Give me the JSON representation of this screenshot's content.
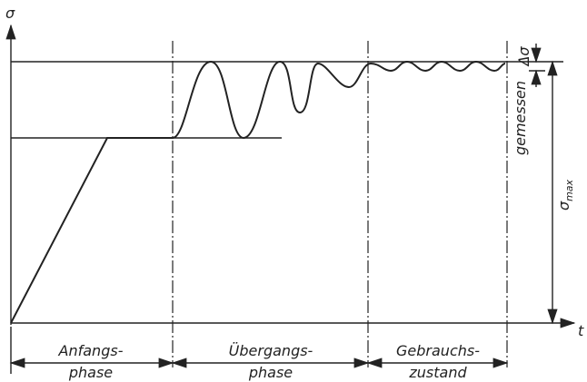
{
  "axes": {
    "y_label": "σ",
    "x_label": "t"
  },
  "annotations": {
    "delta_sigma": "Δσ",
    "gemessen": "gemessen",
    "sigma_max": {
      "symbol": "σ",
      "subscript": "max"
    }
  },
  "phases": [
    {
      "line1": "Anfangs-",
      "line2": "phase"
    },
    {
      "line1": "Übergangs-",
      "line2": "phase"
    },
    {
      "line1": "Gebrauchs-",
      "line2": "zustand"
    }
  ]
}
